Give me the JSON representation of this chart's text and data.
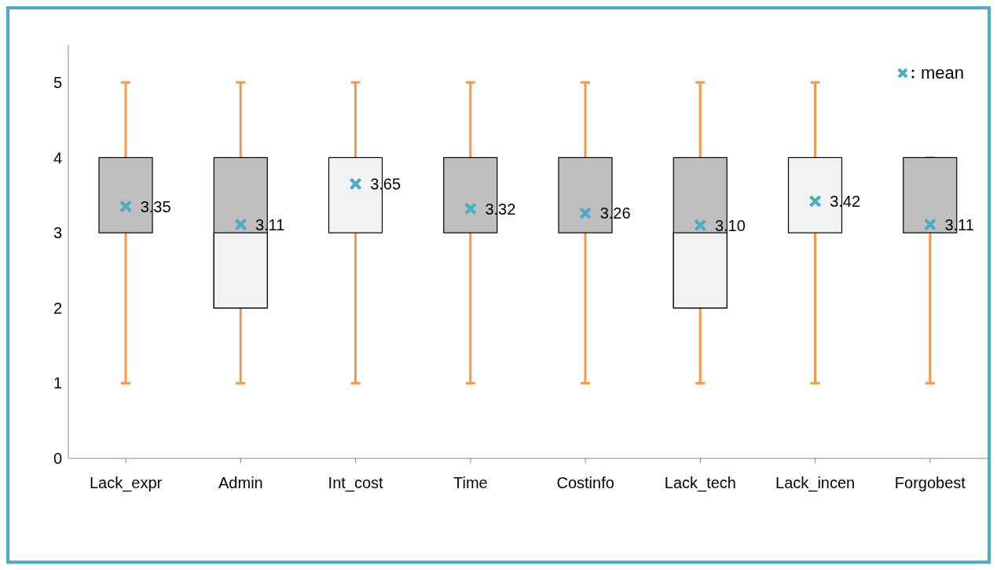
{
  "chart_data": {
    "type": "box",
    "categories": [
      "Lack_expr",
      "Admin",
      "Int_cost",
      "Time",
      "Costinfo",
      "Lack_tech",
      "Lack_incen",
      "Forgobest"
    ],
    "boxes": [
      {
        "low": 1,
        "q1": 3,
        "median": 3,
        "q3": 4,
        "high": 5
      },
      {
        "low": 1,
        "q1": 2,
        "median": 3,
        "q3": 4,
        "high": 5
      },
      {
        "low": 1,
        "q1": 3,
        "median": 4,
        "q3": 4,
        "high": 5
      },
      {
        "low": 1,
        "q1": 3,
        "median": 3,
        "q3": 4,
        "high": 5
      },
      {
        "low": 1,
        "q1": 3,
        "median": 3,
        "q3": 4,
        "high": 5
      },
      {
        "low": 1,
        "q1": 2,
        "median": 3,
        "q3": 4,
        "high": 5
      },
      {
        "low": 1,
        "q1": 3,
        "median": 4,
        "q3": 4,
        "high": 5
      },
      {
        "low": 1,
        "q1": 3,
        "median": 3,
        "q3": 4,
        "high": 4
      }
    ],
    "series": [
      {
        "type": "scatter",
        "name": "mean",
        "color": "#4bacc6",
        "values": [
          3.35,
          3.11,
          3.65,
          3.32,
          3.26,
          3.1,
          3.42,
          3.11
        ],
        "value_labels": [
          "3.35",
          "3.11",
          "3.65",
          "3.32",
          "3.26",
          "3.10",
          "3.42",
          "3.11"
        ]
      }
    ],
    "colors": [
      "#bfbfbf",
      "#bfbfbf",
      "#f2f2f2",
      "#bfbfbf",
      "#bfbfbf",
      "#bfbfbf",
      "#f2f2f2",
      "#bfbfbf"
    ],
    "marker": "cross",
    "legend": "top right",
    "ylim": [
      0,
      5.5
    ],
    "yticks": [
      0,
      1,
      2,
      3,
      4,
      5
    ],
    "grid": false
  }
}
